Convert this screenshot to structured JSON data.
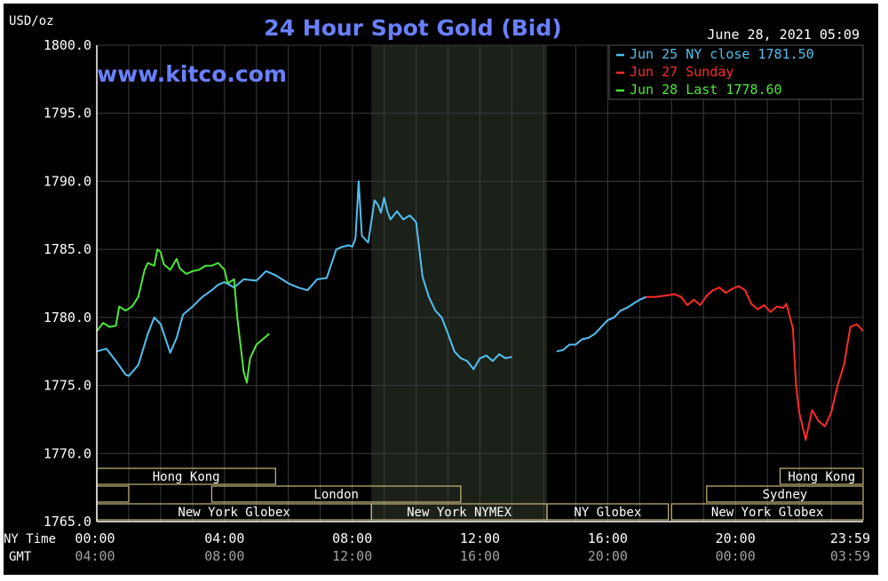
{
  "chart_data": {
    "type": "line",
    "title": "24 Hour Spot Gold (Bid)",
    "unit_label": "USD/oz",
    "watermark": "www.kitco.com",
    "timestamp": "June 28, 2021 05:09",
    "ylim": [
      1765.0,
      1800.0
    ],
    "y_ticks": [
      "1800.0",
      "1795.0",
      "1790.0",
      "1785.0",
      "1780.0",
      "1775.0",
      "1770.0",
      "1765.0"
    ],
    "x_range_hours": [
      0,
      24
    ],
    "x_row_label": "NY Time",
    "x_ticks": [
      "00:00",
      "04:00",
      "08:00",
      "12:00",
      "16:00",
      "20:00",
      "23:59"
    ],
    "gmt_row_label": "GMT",
    "gmt_ticks": [
      "04:00",
      "08:00",
      "12:00",
      "16:00",
      "20:00",
      "00:00",
      "03:59"
    ],
    "colors": {
      "background": "#000000",
      "grid": "#3d3d3d",
      "axis_text": "#ffffff",
      "gmt_text": "#a0a0a0",
      "title": "#6a80ff",
      "watermark": "#6a80ff",
      "shade": "#1b2119",
      "session_border": "#c8b97a"
    },
    "legend": [
      {
        "label": "Jun 25 NY close 1781.50",
        "color": "#52c0f0"
      },
      {
        "label": "Jun 27 Sunday",
        "color": "#ff2a2a"
      },
      {
        "label": "Jun 28 Last 1778.60",
        "color": "#4ee83a"
      }
    ],
    "series": [
      {
        "color": "#52c0f0",
        "x": [
          0.0,
          0.3,
          0.6,
          0.9,
          1.0,
          1.3,
          1.6,
          1.8,
          2.0,
          2.3,
          2.5,
          2.7,
          3.0,
          3.3,
          3.6,
          3.8,
          4.0,
          4.3,
          4.6,
          5.0,
          5.3,
          5.6,
          5.8,
          6.0,
          6.3,
          6.6,
          6.9,
          7.2,
          7.5,
          7.7,
          7.9,
          8.0,
          8.1,
          8.2,
          8.3,
          8.5,
          8.7,
          8.8,
          8.9,
          9.0,
          9.1,
          9.2,
          9.4,
          9.6,
          9.8,
          10.0,
          10.2,
          10.4,
          10.6,
          10.8,
          11.0,
          11.2,
          11.4,
          11.6,
          11.8,
          12.0,
          12.2,
          12.4,
          12.6,
          12.8,
          13.0
        ],
        "y": [
          1777.5,
          1777.7,
          1776.8,
          1775.8,
          1775.7,
          1776.5,
          1778.8,
          1780.0,
          1779.5,
          1777.4,
          1778.5,
          1780.2,
          1780.8,
          1781.5,
          1782.0,
          1782.4,
          1782.6,
          1782.2,
          1782.8,
          1782.7,
          1783.4,
          1783.1,
          1782.8,
          1782.5,
          1782.2,
          1782.0,
          1782.8,
          1782.9,
          1785.0,
          1785.2,
          1785.3,
          1785.2,
          1785.8,
          1790.0,
          1786.0,
          1785.5,
          1788.6,
          1788.3,
          1787.7,
          1788.8,
          1787.8,
          1787.2,
          1787.8,
          1787.2,
          1787.5,
          1787.0,
          1783.0,
          1781.5,
          1780.5,
          1780.0,
          1778.8,
          1777.5,
          1777.0,
          1776.8,
          1776.2,
          1777.0,
          1777.2,
          1776.8,
          1777.3,
          1777.0,
          1777.1
        ]
      },
      {
        "color": "#52c0f0",
        "x": [
          14.4,
          14.6,
          14.8,
          15.0,
          15.2,
          15.4,
          15.6,
          15.8,
          16.0,
          16.2,
          16.4,
          16.6,
          16.8,
          17.0,
          17.2
        ],
        "y": [
          1777.5,
          1777.6,
          1778.0,
          1778.0,
          1778.4,
          1778.5,
          1778.8,
          1779.3,
          1779.8,
          1780.0,
          1780.5,
          1780.7,
          1781.0,
          1781.3,
          1781.5
        ]
      },
      {
        "color": "#ff2a2a",
        "x": [
          17.2,
          17.5,
          17.8,
          18.1,
          18.3,
          18.5,
          18.7,
          18.9,
          19.1,
          19.3,
          19.5,
          19.7,
          19.9,
          20.1,
          20.3,
          20.5,
          20.7,
          20.9,
          21.1,
          21.3,
          21.5,
          21.6,
          21.8,
          21.9,
          22.0,
          22.2,
          22.4,
          22.6,
          22.8,
          23.0,
          23.2,
          23.4,
          23.6,
          23.8,
          24.0
        ],
        "y": [
          1781.5,
          1781.5,
          1781.6,
          1781.7,
          1781.5,
          1780.9,
          1781.3,
          1780.9,
          1781.6,
          1782.0,
          1782.2,
          1781.8,
          1782.1,
          1782.3,
          1782.0,
          1781.0,
          1780.6,
          1780.9,
          1780.4,
          1780.8,
          1780.7,
          1781.0,
          1779.2,
          1775.0,
          1773.0,
          1771.0,
          1773.2,
          1772.4,
          1772.0,
          1773.0,
          1775.0,
          1776.5,
          1779.3,
          1779.5,
          1779.0
        ]
      },
      {
        "color": "#4ee83a",
        "x": [
          0.0,
          0.2,
          0.4,
          0.6,
          0.7,
          0.9,
          1.1,
          1.3,
          1.5,
          1.6,
          1.8,
          1.9,
          2.0,
          2.1,
          2.3,
          2.5,
          2.6,
          2.8,
          3.0,
          3.2,
          3.4,
          3.6,
          3.8,
          4.0,
          4.1,
          4.3,
          4.4,
          4.5,
          4.6,
          4.7,
          4.8,
          4.9,
          5.0,
          5.2,
          5.4
        ],
        "y": [
          1779.0,
          1779.6,
          1779.3,
          1779.4,
          1780.8,
          1780.5,
          1780.8,
          1781.5,
          1783.5,
          1784.0,
          1783.8,
          1785.0,
          1784.8,
          1783.9,
          1783.5,
          1784.3,
          1783.6,
          1783.2,
          1783.4,
          1783.5,
          1783.8,
          1783.8,
          1784.0,
          1783.5,
          1782.5,
          1782.8,
          1780.0,
          1778.0,
          1776.0,
          1775.2,
          1777.0,
          1777.5,
          1778.0,
          1778.4,
          1778.8
        ]
      }
    ],
    "sessions": [
      {
        "label": "Hong Kong",
        "start": 0.0,
        "end": 5.6,
        "row": 1
      },
      {
        "label": "",
        "start": 0.0,
        "end": 1.0,
        "row": 2
      },
      {
        "label": "London",
        "start": 3.6,
        "end": 11.4,
        "row": 2
      },
      {
        "label": "New York Globex",
        "start": 0.0,
        "end": 8.6,
        "row": 3
      },
      {
        "label": "New York NYMEX",
        "start": 8.6,
        "end": 14.1,
        "row": 3
      },
      {
        "label": "NY Globex",
        "start": 14.1,
        "end": 17.9,
        "row": 3
      },
      {
        "label": "Hong Kong",
        "start": 21.4,
        "end": 24.0,
        "row": 1
      },
      {
        "label": "Sydney",
        "start": 19.1,
        "end": 24.0,
        "row": 2
      },
      {
        "label": "New York Globex",
        "start": 18.0,
        "end": 24.0,
        "row": 3
      }
    ],
    "shaded_hours": [
      8.6,
      14.1
    ],
    "grid": true,
    "legend_position": "top-right"
  }
}
